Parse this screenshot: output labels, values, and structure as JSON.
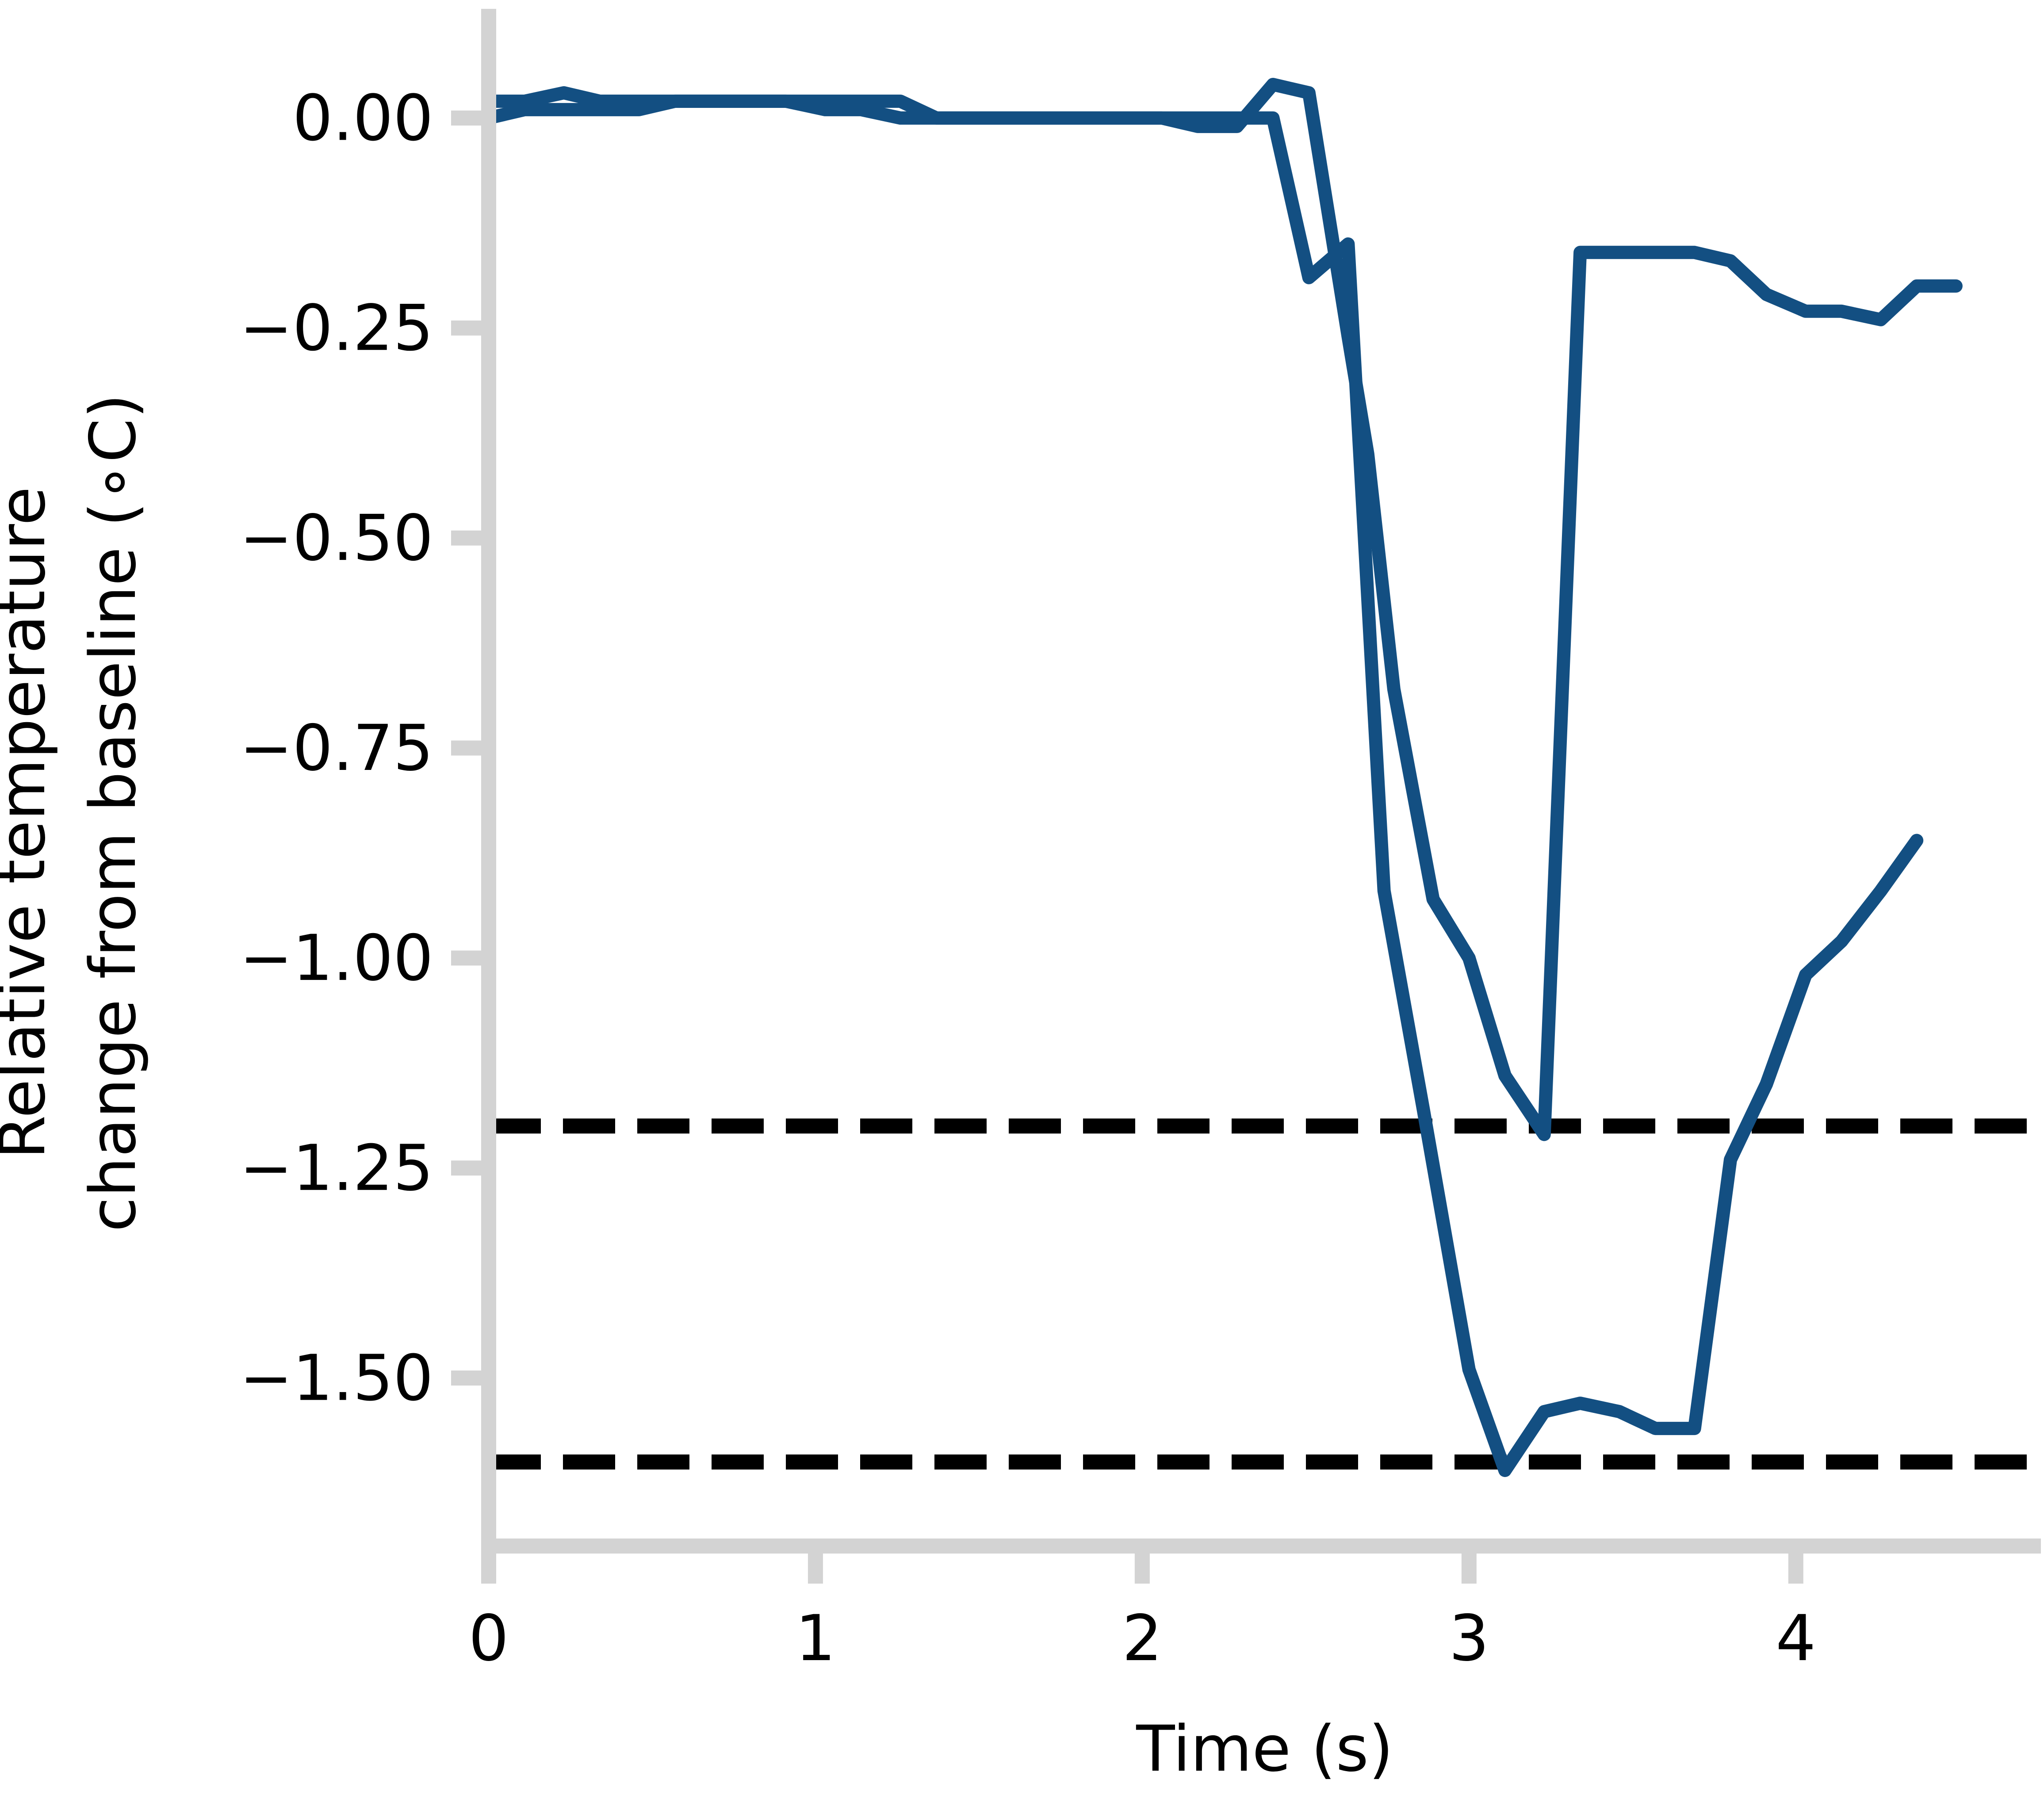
{
  "chart_data": {
    "type": "line",
    "title": "",
    "xlabel": "Time (s)",
    "ylabel": [
      "Relative temperature",
      "change from baseline (∘C)"
    ],
    "xlim": [
      0,
      4.75
    ],
    "ylim": [
      -1.7,
      0.13
    ],
    "x_ticks": [
      0,
      1,
      2,
      3,
      4
    ],
    "x_tick_labels": [
      "0",
      "1",
      "2",
      "3",
      "4"
    ],
    "y_ticks": [
      0,
      -0.25,
      -0.5,
      -0.75,
      -1.0,
      -1.25,
      -1.5
    ],
    "y_tick_labels": [
      "0.00",
      "−0.25",
      "−0.50",
      "−0.75",
      "−1.00",
      "−1.25",
      "−1.50"
    ],
    "grid": false,
    "colors": {
      "series": "#134f82",
      "axis": "#d3d3d3",
      "reference": "#000000"
    },
    "series": [
      {
        "x": [
          0,
          0.11,
          0.23,
          0.34,
          0.46,
          0.57,
          0.69,
          0.8,
          0.91,
          1.03,
          1.14,
          1.26,
          1.37,
          1.49,
          1.6,
          1.71,
          1.83,
          1.94,
          2.06,
          2.17,
          2.29,
          2.4,
          2.51,
          2.63,
          2.74,
          2.86,
          3.0,
          3.11,
          3.23,
          3.34,
          3.46,
          3.57,
          3.69,
          3.8,
          3.91,
          4.03,
          4.14,
          4.26,
          4.37,
          4.49
        ],
        "y": [
          0.0,
          0.01,
          0.01,
          0.01,
          0.01,
          0.02,
          0.02,
          0.02,
          0.02,
          0.02,
          0.02,
          0.02,
          0.0,
          0.0,
          0.0,
          0.0,
          0.0,
          0.0,
          0.0,
          0.0,
          0.0,
          0.0,
          -0.19,
          -0.15,
          -0.92,
          -1.18,
          -1.49,
          -1.61,
          -1.54,
          -1.53,
          -1.54,
          -1.56,
          -1.56,
          -1.24,
          -1.15,
          -1.02,
          -0.98,
          -0.92,
          -0.86,
          null
        ]
      },
      {
        "x": [
          0,
          0.11,
          0.23,
          0.34,
          0.46,
          0.57,
          0.69,
          0.8,
          0.91,
          1.03,
          1.14,
          1.26,
          1.37,
          1.49,
          1.6,
          1.71,
          1.83,
          1.94,
          2.06,
          2.17,
          2.29,
          2.4,
          2.51,
          2.63,
          2.69,
          2.77,
          2.89,
          3.0,
          3.11,
          3.23,
          3.34,
          3.46,
          3.57,
          3.69,
          3.8,
          3.91,
          4.03,
          4.14,
          4.26,
          4.37,
          4.49
        ],
        "y": [
          0.02,
          0.02,
          0.03,
          0.02,
          0.02,
          0.02,
          0.02,
          0.02,
          0.02,
          0.01,
          0.01,
          0.0,
          0.0,
          0.0,
          0.0,
          0.0,
          0.0,
          0.0,
          0.0,
          -0.01,
          -0.01,
          0.04,
          0.03,
          -0.26,
          -0.4,
          -0.68,
          -0.93,
          -1.0,
          -1.14,
          -1.21,
          -0.16,
          -0.16,
          -0.16,
          -0.16,
          -0.17,
          -0.21,
          -0.23,
          -0.23,
          -0.24,
          -0.2,
          -0.2
        ]
      }
    ],
    "reference_lines": [
      {
        "orientation": "horizontal",
        "y": -1.2,
        "style": "dashed"
      },
      {
        "orientation": "horizontal",
        "y": -1.6,
        "style": "dashed"
      }
    ]
  }
}
